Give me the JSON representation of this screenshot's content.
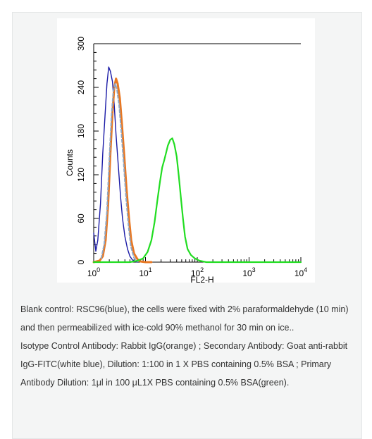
{
  "caption": {
    "paragraph_1": "Blank control: RSC96(blue), the cells were fixed with 2% paraformaldehyde (10 min) and then permeabilized with ice-cold 90% methanol for 30 min on ice..",
    "paragraph_2": "Isotype Control Antibody: Rabbit IgG(orange) ; Secondary Antibody: Goat anti-rabbit IgG-FITC(white blue), Dilution: 1:100 in 1 X PBS containing 0.5% BSA ; Primary Antibody Dilution: 1μl in 100 μL1X PBS containing 0.5% BSA(green)."
  },
  "chart_data": {
    "type": "line",
    "title": "",
    "xlabel": "FL2-H",
    "ylabel": "Counts",
    "x_scale": "log",
    "xlim": [
      1,
      10000
    ],
    "ylim": [
      0,
      300
    ],
    "x_ticks": [
      1,
      10,
      100,
      1000,
      10000
    ],
    "x_tick_labels": [
      {
        "base": "10",
        "exp": "0"
      },
      {
        "base": "10",
        "exp": "1"
      },
      {
        "base": "10",
        "exp": "2"
      },
      {
        "base": "10",
        "exp": "3"
      },
      {
        "base": "10",
        "exp": "4"
      }
    ],
    "y_ticks": [
      0,
      60,
      120,
      180,
      240,
      300
    ],
    "y_tick_labels": [
      "0",
      "60",
      "120",
      "180",
      "240",
      "300"
    ],
    "grid": false,
    "legend": "none",
    "series": [
      {
        "color": "#1a1aa6",
        "dashed": false,
        "x": [
          1.0,
          1.1,
          1.2,
          1.35,
          1.5,
          1.65,
          1.8,
          1.95,
          2.1,
          2.3,
          2.5,
          2.7,
          3.0,
          3.3,
          3.6,
          4.0,
          4.5,
          5.0,
          5.6,
          6.3,
          7.0
        ],
        "y": [
          40,
          15,
          30,
          80,
          150,
          200,
          245,
          268,
          262,
          248,
          215,
          175,
          130,
          90,
          60,
          35,
          18,
          8,
          3,
          1,
          0
        ]
      },
      {
        "color": "#e87722",
        "dashed": false,
        "x": [
          1.0,
          1.3,
          1.5,
          1.7,
          1.9,
          2.1,
          2.3,
          2.5,
          2.7,
          2.9,
          3.2,
          3.5,
          3.9,
          4.3,
          4.8,
          5.3,
          6.0,
          7.0,
          8.0,
          10.0,
          13.0
        ],
        "y": [
          0,
          2,
          8,
          30,
          80,
          150,
          205,
          240,
          252,
          245,
          225,
          190,
          145,
          100,
          60,
          30,
          12,
          4,
          1,
          0,
          0
        ]
      },
      {
        "color": "#8fa7c4",
        "dashed": true,
        "x": [
          1.4,
          1.6,
          1.8,
          2.0,
          2.2,
          2.4,
          2.6,
          2.8,
          3.1,
          3.4,
          3.8,
          4.2,
          4.7,
          5.2,
          6.0,
          7.0
        ],
        "y": [
          5,
          25,
          70,
          140,
          200,
          235,
          245,
          238,
          215,
          180,
          135,
          90,
          50,
          22,
          6,
          1
        ]
      },
      {
        "color": "#22dd22",
        "dashed": false,
        "x": [
          1.0,
          5.0,
          7.0,
          9.0,
          11.0,
          13.0,
          15.0,
          17.0,
          19.0,
          21.0,
          23.0,
          25.0,
          27.0,
          30.0,
          33.0,
          36.0,
          40.0,
          44.0,
          48.0,
          53.0,
          58.0,
          65.0,
          75.0,
          90.0,
          110.0,
          150.0,
          300.0,
          10000.0
        ],
        "y": [
          0,
          0,
          2,
          5,
          14,
          30,
          55,
          85,
          110,
          130,
          140,
          150,
          160,
          168,
          170,
          162,
          145,
          118,
          90,
          60,
          35,
          18,
          10,
          5,
          2,
          0,
          0,
          0
        ]
      }
    ]
  }
}
